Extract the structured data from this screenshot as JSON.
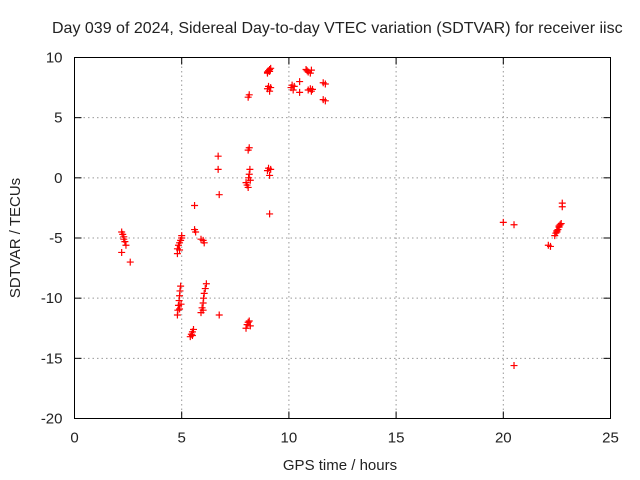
{
  "chart_data": {
    "type": "scatter",
    "title": "Day 039 of 2024, Sidereal Day-to-day VTEC variation (SDTVAR) for receiver iisc",
    "xlabel": "GPS time / hours",
    "ylabel": "SDTVAR / TECUs",
    "xlim": [
      0,
      25
    ],
    "ylim": [
      -20,
      10
    ],
    "xticks": [
      0,
      5,
      10,
      15,
      20,
      25
    ],
    "yticks": [
      -20,
      -15,
      -10,
      -5,
      0,
      5,
      10
    ],
    "xtick_labels": [
      "0",
      "5",
      "10",
      "15",
      "20",
      "25"
    ],
    "ytick_labels": [
      "-20",
      "-15",
      "-10",
      "-5",
      "0",
      "5",
      "10"
    ],
    "grid": true,
    "marker": "plus",
    "marker_color": "#ff0000",
    "series": [
      {
        "name": "SDTVAR",
        "points": [
          [
            2.2,
            -4.5
          ],
          [
            2.25,
            -4.7
          ],
          [
            2.3,
            -4.9
          ],
          [
            2.3,
            -5.1
          ],
          [
            2.35,
            -5.3
          ],
          [
            2.4,
            -5.6
          ],
          [
            2.2,
            -6.2
          ],
          [
            2.6,
            -7.0
          ],
          [
            4.8,
            -5.9
          ],
          [
            4.85,
            -5.6
          ],
          [
            4.9,
            -5.4
          ],
          [
            4.95,
            -5.2
          ],
          [
            5.0,
            -5.0
          ],
          [
            5.0,
            -4.8
          ],
          [
            4.8,
            -6.3
          ],
          [
            4.9,
            -6.0
          ],
          [
            4.8,
            -11.4
          ],
          [
            4.82,
            -11.0
          ],
          [
            4.85,
            -10.6
          ],
          [
            4.88,
            -10.2
          ],
          [
            4.9,
            -9.8
          ],
          [
            4.92,
            -9.4
          ],
          [
            4.95,
            -9.0
          ],
          [
            4.97,
            -10.5
          ],
          [
            4.9,
            -10.9
          ],
          [
            5.4,
            -13.2
          ],
          [
            5.45,
            -13.0
          ],
          [
            5.5,
            -12.8
          ],
          [
            5.55,
            -12.6
          ],
          [
            5.5,
            -13.1
          ],
          [
            5.6,
            -2.3
          ],
          [
            5.6,
            -4.3
          ],
          [
            5.65,
            -4.5
          ],
          [
            5.9,
            -11.2
          ],
          [
            5.95,
            -10.8
          ],
          [
            6.0,
            -10.4
          ],
          [
            6.02,
            -10.0
          ],
          [
            6.05,
            -9.6
          ],
          [
            6.1,
            -9.2
          ],
          [
            6.15,
            -8.8
          ],
          [
            6.0,
            -11.0
          ],
          [
            5.9,
            -5.1
          ],
          [
            6.0,
            -5.2
          ],
          [
            6.05,
            -5.4
          ],
          [
            6.7,
            1.8
          ],
          [
            6.7,
            0.7
          ],
          [
            6.75,
            -1.4
          ],
          [
            6.75,
            -11.4
          ],
          [
            8.0,
            -12.5
          ],
          [
            8.05,
            -12.2
          ],
          [
            8.1,
            -12.0
          ],
          [
            8.15,
            -11.9
          ],
          [
            8.2,
            -12.3
          ],
          [
            8.0,
            -0.4
          ],
          [
            8.05,
            -0.6
          ],
          [
            8.1,
            -0.8
          ],
          [
            8.12,
            0.0
          ],
          [
            8.15,
            0.3
          ],
          [
            8.18,
            0.7
          ],
          [
            8.2,
            -0.2
          ],
          [
            8.1,
            2.3
          ],
          [
            8.15,
            2.5
          ],
          [
            8.1,
            6.7
          ],
          [
            8.15,
            6.9
          ],
          [
            9.0,
            8.8
          ],
          [
            9.05,
            8.9
          ],
          [
            9.1,
            9.0
          ],
          [
            9.15,
            9.1
          ],
          [
            9.0,
            8.7
          ],
          [
            9.1,
            8.85
          ],
          [
            9.0,
            7.4
          ],
          [
            9.05,
            7.6
          ],
          [
            9.1,
            7.2
          ],
          [
            9.15,
            7.5
          ],
          [
            9.0,
            0.6
          ],
          [
            9.05,
            0.8
          ],
          [
            9.1,
            0.2
          ],
          [
            9.15,
            0.7
          ],
          [
            9.1,
            -3.0
          ],
          [
            10.1,
            7.5
          ],
          [
            10.15,
            7.7
          ],
          [
            10.2,
            7.3
          ],
          [
            10.25,
            7.6
          ],
          [
            10.5,
            8.0
          ],
          [
            10.5,
            7.1
          ],
          [
            10.8,
            9.0
          ],
          [
            10.85,
            8.9
          ],
          [
            10.9,
            8.8
          ],
          [
            11.0,
            8.7
          ],
          [
            11.05,
            8.95
          ],
          [
            10.9,
            7.3
          ],
          [
            11.0,
            7.4
          ],
          [
            11.05,
            7.2
          ],
          [
            11.1,
            7.35
          ],
          [
            11.6,
            7.9
          ],
          [
            11.7,
            7.8
          ],
          [
            11.6,
            6.5
          ],
          [
            11.7,
            6.4
          ],
          [
            20.0,
            -3.7
          ],
          [
            20.5,
            -3.9
          ],
          [
            20.5,
            -15.6
          ],
          [
            22.1,
            -5.6
          ],
          [
            22.2,
            -5.7
          ],
          [
            22.4,
            -4.8
          ],
          [
            22.45,
            -4.6
          ],
          [
            22.5,
            -4.4
          ],
          [
            22.55,
            -4.3
          ],
          [
            22.6,
            -4.1
          ],
          [
            22.65,
            -3.9
          ],
          [
            22.7,
            -3.8
          ],
          [
            22.5,
            -4.5
          ],
          [
            22.6,
            -4.0
          ],
          [
            22.75,
            -2.1
          ],
          [
            22.75,
            -2.4
          ]
        ]
      }
    ]
  }
}
